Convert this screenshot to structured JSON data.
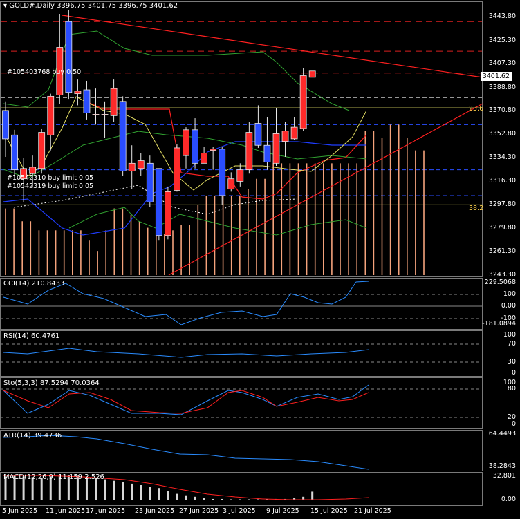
{
  "title": {
    "symbol": "GOLD#,Daily",
    "ohlc": "3396.75 3401.75 3396.75 3401.62"
  },
  "current_price": "3401.62",
  "price_axis": [
    "3443.80",
    "3425.30",
    "3407.30",
    "3388.80",
    "3370.80",
    "3352.80",
    "3334.30",
    "3316.30",
    "3297.80",
    "3279.80",
    "3261.30",
    "3243.30"
  ],
  "fib_labels": {
    "level_236": "23.6",
    "level_382": "38.2"
  },
  "orders": [
    {
      "id": "#10540376",
      "text": "#105403768 buy 0.50"
    },
    {
      "id": "#2310",
      "text": "#10542310 buy limit 0.05"
    },
    {
      "id": "#2319",
      "text": "#10542319 buy limit 0.05"
    }
  ],
  "indicators": {
    "cci": {
      "label": "CCI(14) 210.8433",
      "axis": [
        "229.5068",
        "100",
        "0.00",
        "-100",
        "-181.0894"
      ]
    },
    "rsi": {
      "label": "RSI(14) 60.4761",
      "axis": [
        "100",
        "70",
        "30",
        "0"
      ]
    },
    "sto": {
      "label": "Sto(5,3,3) 87.5294 70.0364",
      "axis": [
        "100",
        "80",
        "20",
        "0"
      ]
    },
    "atr": {
      "label": "ATR(14) 39.4736",
      "axis": [
        "64.4493",
        "38.2843"
      ]
    },
    "macd": {
      "label": "MACD(12,26,9) 11.159 2.526",
      "axis": [
        "32.801",
        "0.00"
      ]
    }
  },
  "dates": [
    "5 Jun 2025",
    "11 Jun 2025",
    "17 Jun 2025",
    "23 Jun 2025",
    "27 Jun 2025",
    "3 Jul 2025",
    "9 Jul 2025",
    "15 Jul 2025",
    "21 Jul 2025"
  ],
  "colors": {
    "bull": "#ff2a2a",
    "bear": "#2a4dff",
    "ichimoku": "#f4a37c",
    "trend": "#ff2020",
    "ma_blue": "#1f3dff",
    "grid": "#5a5a5a"
  },
  "chart_data": {
    "type": "candlestick",
    "series": [
      {
        "o": 3371,
        "h": 3378,
        "l": 3335,
        "c": 3349
      },
      {
        "o": 3352,
        "h": 3356,
        "l": 3317,
        "c": 3325
      },
      {
        "o": 3318,
        "h": 3334,
        "l": 3300,
        "c": 3326
      },
      {
        "o": 3322,
        "h": 3336,
        "l": 3312,
        "c": 3327
      },
      {
        "o": 3326,
        "h": 3357,
        "l": 3322,
        "c": 3354
      },
      {
        "o": 3352,
        "h": 3384,
        "l": 3340,
        "c": 3382
      },
      {
        "o": 3383,
        "h": 3446,
        "l": 3376,
        "c": 3420
      },
      {
        "o": 3440,
        "h": 3449,
        "l": 3380,
        "c": 3385
      },
      {
        "o": 3384,
        "h": 3395,
        "l": 3375,
        "c": 3386
      },
      {
        "o": 3387,
        "h": 3394,
        "l": 3364,
        "c": 3369
      },
      {
        "o": 3368,
        "h": 3388,
        "l": 3360,
        "c": 3368
      },
      {
        "o": 3368,
        "h": 3378,
        "l": 3350,
        "c": 3368
      },
      {
        "o": 3367,
        "h": 3395,
        "l": 3362,
        "c": 3388
      },
      {
        "o": 3378,
        "h": 3382,
        "l": 3320,
        "c": 3324
      },
      {
        "o": 3324,
        "h": 3344,
        "l": 3310,
        "c": 3330
      },
      {
        "o": 3326,
        "h": 3338,
        "l": 3320,
        "c": 3332
      },
      {
        "o": 3330,
        "h": 3336,
        "l": 3296,
        "c": 3300
      },
      {
        "o": 3326,
        "h": 3325,
        "l": 3270,
        "c": 3274
      },
      {
        "o": 3274,
        "h": 3312,
        "l": 3271,
        "c": 3308
      },
      {
        "o": 3309,
        "h": 3345,
        "l": 3308,
        "c": 3342
      },
      {
        "o": 3336,
        "h": 3358,
        "l": 3326,
        "c": 3356
      },
      {
        "o": 3356,
        "h": 3365,
        "l": 3326,
        "c": 3330
      },
      {
        "o": 3330,
        "h": 3343,
        "l": 3330,
        "c": 3338
      },
      {
        "o": 3340,
        "h": 3343,
        "l": 3325,
        "c": 3341
      },
      {
        "o": 3341,
        "h": 3343,
        "l": 3298,
        "c": 3305
      },
      {
        "o": 3310,
        "h": 3323,
        "l": 3308,
        "c": 3318
      },
      {
        "o": 3316,
        "h": 3330,
        "l": 3312,
        "c": 3325
      },
      {
        "o": 3325,
        "h": 3362,
        "l": 3322,
        "c": 3354
      },
      {
        "o": 3361,
        "h": 3375,
        "l": 3342,
        "c": 3344
      },
      {
        "o": 3344,
        "h": 3366,
        "l": 3325,
        "c": 3331
      },
      {
        "o": 3330,
        "h": 3373,
        "l": 3328,
        "c": 3353
      },
      {
        "o": 3347,
        "h": 3362,
        "l": 3335,
        "c": 3355
      },
      {
        "o": 3349,
        "h": 3366,
        "l": 3348,
        "c": 3358
      },
      {
        "o": 3357,
        "h": 3404,
        "l": 3355,
        "c": 3398
      },
      {
        "o": 3396.75,
        "h": 3401.75,
        "l": 3396.75,
        "c": 3401.62
      }
    ]
  }
}
